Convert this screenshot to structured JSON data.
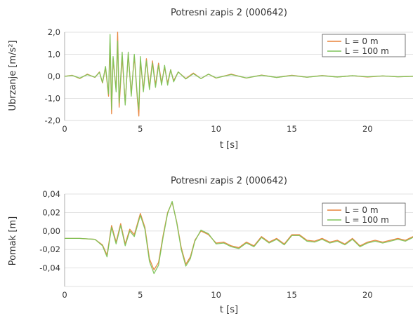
{
  "chart_data": [
    {
      "type": "line",
      "title": "Potresni zapis 2 (000642)",
      "xlabel": "t [s]",
      "ylabel": "Ubrzanje [m/s²]",
      "xlim": [
        0,
        23
      ],
      "ylim": [
        -2.0,
        2.0
      ],
      "xticks": [
        "0",
        "5",
        "10",
        "15",
        "20"
      ],
      "yticks": [
        "2,0",
        "1,0",
        "0,0",
        "-1,0",
        "-2,0"
      ],
      "legend_position": "top-right",
      "grid": "horizontal",
      "series": [
        {
          "name": "L = 0 m",
          "color": "#e8833a",
          "x": [
            0,
            0.5,
            1,
            1.5,
            2,
            2.3,
            2.5,
            2.7,
            2.9,
            3.0,
            3.1,
            3.2,
            3.4,
            3.5,
            3.6,
            3.8,
            4.0,
            4.2,
            4.4,
            4.6,
            4.8,
            4.9,
            5.0,
            5.2,
            5.4,
            5.6,
            5.8,
            6.0,
            6.2,
            6.4,
            6.6,
            6.8,
            7.0,
            7.2,
            7.5,
            8,
            8.5,
            9,
            9.5,
            10,
            11,
            12,
            13,
            14,
            15,
            16,
            17,
            18,
            19,
            20,
            21,
            22,
            23
          ],
          "y": [
            0.0,
            0.05,
            -0.1,
            0.1,
            -0.05,
            0.2,
            -0.3,
            0.4,
            -0.9,
            1.5,
            -1.7,
            0.8,
            -0.6,
            2.0,
            -1.4,
            0.9,
            -1.2,
            1.0,
            -0.8,
            0.9,
            -1.0,
            -1.8,
            0.7,
            -0.6,
            0.8,
            -0.5,
            0.7,
            -0.4,
            0.6,
            -0.3,
            0.4,
            -0.3,
            0.3,
            -0.2,
            0.2,
            -0.1,
            0.15,
            -0.1,
            0.1,
            -0.08,
            0.1,
            -0.08,
            0.06,
            -0.05,
            0.05,
            -0.04,
            0.04,
            -0.03,
            0.03,
            -0.03,
            0.02,
            -0.02,
            0.0
          ]
        },
        {
          "name": "L = 100 m",
          "color": "#7ec45a",
          "x": [
            0,
            0.5,
            1,
            1.5,
            2,
            2.3,
            2.5,
            2.7,
            2.9,
            3.0,
            3.1,
            3.2,
            3.4,
            3.5,
            3.6,
            3.8,
            4.0,
            4.2,
            4.4,
            4.6,
            4.8,
            4.9,
            5.0,
            5.2,
            5.4,
            5.6,
            5.8,
            6.0,
            6.2,
            6.4,
            6.6,
            6.8,
            7.0,
            7.2,
            7.5,
            8,
            8.5,
            9,
            9.5,
            10,
            11,
            12,
            13,
            14,
            15,
            16,
            17,
            18,
            19,
            20,
            21,
            22,
            23
          ],
          "y": [
            0.0,
            0.04,
            -0.08,
            0.08,
            -0.04,
            0.18,
            -0.28,
            0.45,
            -0.8,
            1.9,
            -1.5,
            0.9,
            -0.7,
            1.6,
            -1.2,
            1.1,
            -1.3,
            1.1,
            -0.9,
            1.0,
            -0.9,
            -1.5,
            0.9,
            -0.7,
            0.7,
            -0.6,
            0.6,
            -0.5,
            0.5,
            -0.4,
            0.5,
            -0.4,
            0.3,
            -0.25,
            0.2,
            -0.12,
            0.12,
            -0.1,
            0.1,
            -0.07,
            0.08,
            -0.07,
            0.05,
            -0.05,
            0.04,
            -0.04,
            0.03,
            -0.03,
            0.03,
            -0.02,
            0.02,
            -0.02,
            0.0
          ]
        }
      ]
    },
    {
      "type": "line",
      "title": "Potresni zapis 2 (000642)",
      "xlabel": "t [s]",
      "ylabel": "Pomak [m]",
      "xlim": [
        0,
        23
      ],
      "ylim": [
        -0.06,
        0.04
      ],
      "xticks": [
        "0",
        "5",
        "10",
        "15",
        "20"
      ],
      "yticks": [
        "0,04",
        "0,02",
        "0,00",
        "-0,02",
        "-0,04"
      ],
      "legend_position": "top-right",
      "grid": "horizontal",
      "series": [
        {
          "name": "L = 0 m",
          "color": "#e8833a",
          "x": [
            0,
            1,
            2,
            2.5,
            2.8,
            3.1,
            3.4,
            3.7,
            4.0,
            4.3,
            4.6,
            5.0,
            5.3,
            5.6,
            5.9,
            6.2,
            6.5,
            6.8,
            7.1,
            7.4,
            7.7,
            8.0,
            8.3,
            8.6,
            9.0,
            9.5,
            10.0,
            10.5,
            11.0,
            11.5,
            12.0,
            12.5,
            13.0,
            13.5,
            14.0,
            14.5,
            15.0,
            15.5,
            16.0,
            16.5,
            17.0,
            17.5,
            18.0,
            18.5,
            19.0,
            19.5,
            20.0,
            20.5,
            21.0,
            21.5,
            22.0,
            22.5,
            23.0
          ],
          "y": [
            -0.008,
            -0.008,
            -0.009,
            -0.015,
            -0.026,
            0.006,
            -0.012,
            0.008,
            -0.014,
            0.002,
            -0.004,
            0.019,
            0.004,
            -0.03,
            -0.042,
            -0.034,
            -0.005,
            0.02,
            0.031,
            0.01,
            -0.018,
            -0.036,
            -0.028,
            -0.01,
            0.0,
            -0.004,
            -0.013,
            -0.012,
            -0.016,
            -0.018,
            -0.012,
            -0.016,
            -0.006,
            -0.012,
            -0.008,
            -0.014,
            -0.004,
            -0.004,
            -0.01,
            -0.011,
            -0.008,
            -0.012,
            -0.01,
            -0.014,
            -0.008,
            -0.016,
            -0.012,
            -0.01,
            -0.012,
            -0.01,
            -0.008,
            -0.01,
            -0.006
          ]
        },
        {
          "name": "L = 100 m",
          "color": "#7ec45a",
          "x": [
            0,
            1,
            2,
            2.5,
            2.8,
            3.1,
            3.4,
            3.7,
            4.0,
            4.3,
            4.6,
            5.0,
            5.3,
            5.6,
            5.9,
            6.2,
            6.5,
            6.8,
            7.1,
            7.4,
            7.7,
            8.0,
            8.3,
            8.6,
            9.0,
            9.5,
            10.0,
            10.5,
            11.0,
            11.5,
            12.0,
            12.5,
            13.0,
            13.5,
            14.0,
            14.5,
            15.0,
            15.5,
            16.0,
            16.5,
            17.0,
            17.5,
            18.0,
            18.5,
            19.0,
            19.5,
            20.0,
            20.5,
            21.0,
            21.5,
            22.0,
            22.5,
            23.0
          ],
          "y": [
            -0.008,
            -0.008,
            -0.009,
            -0.016,
            -0.028,
            0.004,
            -0.014,
            0.006,
            -0.016,
            0.0,
            -0.006,
            0.017,
            0.002,
            -0.033,
            -0.046,
            -0.037,
            -0.007,
            0.019,
            0.032,
            0.009,
            -0.02,
            -0.038,
            -0.03,
            -0.011,
            0.001,
            -0.003,
            -0.014,
            -0.013,
            -0.017,
            -0.019,
            -0.013,
            -0.017,
            -0.007,
            -0.013,
            -0.009,
            -0.015,
            -0.005,
            -0.005,
            -0.011,
            -0.012,
            -0.009,
            -0.013,
            -0.011,
            -0.015,
            -0.009,
            -0.017,
            -0.013,
            -0.011,
            -0.013,
            -0.011,
            -0.009,
            -0.011,
            -0.007
          ]
        }
      ]
    }
  ]
}
